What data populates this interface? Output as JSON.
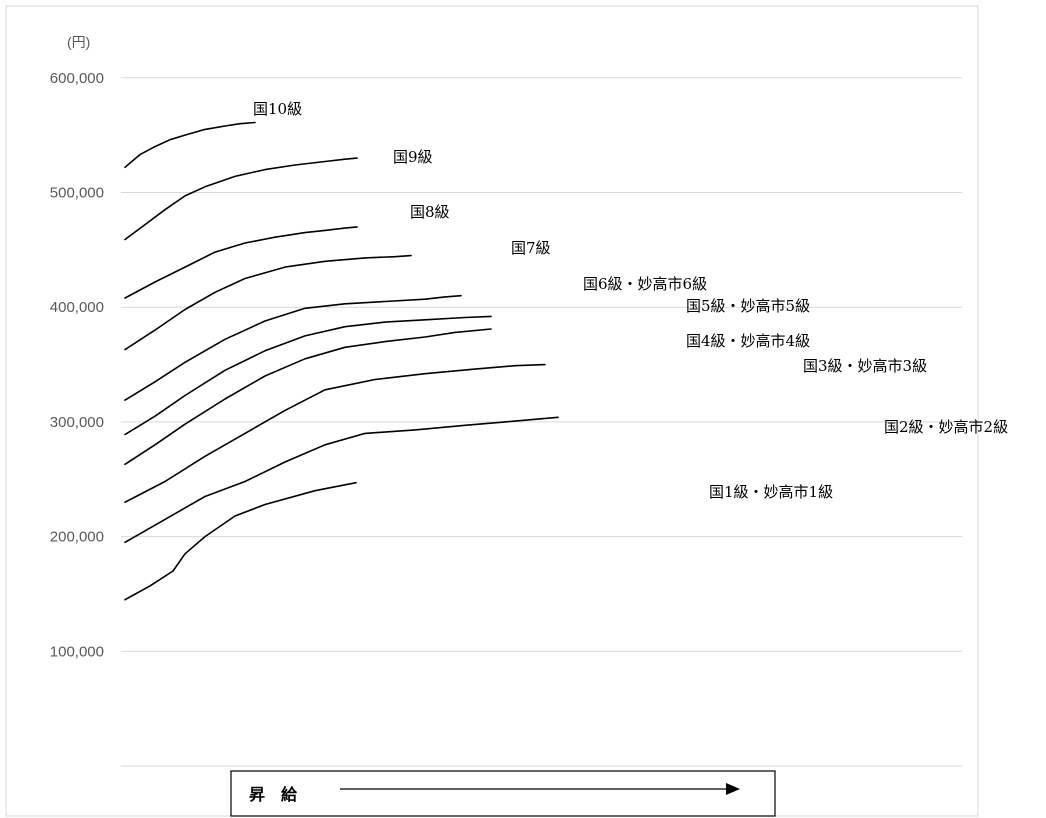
{
  "chart_data": {
    "type": "line",
    "title": "",
    "ylabel": "(円)",
    "xlabel": "昇　給",
    "ylim": [
      0,
      600000
    ],
    "yticks": [
      {
        "value": 100000,
        "label": "100,000"
      },
      {
        "value": 200000,
        "label": "200,000"
      },
      {
        "value": 300000,
        "label": "300,000"
      },
      {
        "value": 400000,
        "label": "400,000"
      },
      {
        "value": 500000,
        "label": "500,000"
      },
      {
        "value": 600000,
        "label": "600,000"
      }
    ],
    "grid": true,
    "series": [
      {
        "name": "国1級・妙高市1級",
        "x": [
          0,
          25,
          48,
          60,
          80,
          110,
          140,
          190,
          231
        ],
        "y": [
          145000,
          157000,
          170000,
          185000,
          200000,
          218000,
          228000,
          240000,
          247000
        ]
      },
      {
        "name": "国2級・妙高市2級",
        "x": [
          0,
          40,
          80,
          120,
          160,
          200,
          240,
          290,
          340,
          380,
          433
        ],
        "y": [
          195000,
          215000,
          235000,
          248000,
          265000,
          280000,
          290000,
          293000,
          297000,
          300000,
          304000
        ]
      },
      {
        "name": "国3級・妙高市3級",
        "x": [
          0,
          40,
          80,
          120,
          160,
          200,
          250,
          300,
          350,
          390,
          420
        ],
        "y": [
          230000,
          248000,
          270000,
          290000,
          310000,
          328000,
          337000,
          342000,
          346000,
          349000,
          350000
        ]
      },
      {
        "name": "国4級・妙高市4級",
        "x": [
          0,
          30,
          60,
          100,
          140,
          180,
          220,
          260,
          300,
          330,
          366
        ],
        "y": [
          263000,
          280000,
          298000,
          320000,
          340000,
          355000,
          365000,
          370000,
          374000,
          378000,
          381000
        ]
      },
      {
        "name": "国5級・妙高市5級",
        "x": [
          0,
          30,
          60,
          100,
          140,
          180,
          220,
          260,
          300,
          340,
          366
        ],
        "y": [
          289000,
          305000,
          323000,
          345000,
          362000,
          375000,
          383000,
          387000,
          389000,
          391000,
          392000
        ]
      },
      {
        "name": "国6級・妙高市6級",
        "x": [
          0,
          30,
          60,
          100,
          140,
          180,
          220,
          260,
          300,
          320,
          336
        ],
        "y": [
          319000,
          335000,
          352000,
          372000,
          388000,
          399000,
          403000,
          405000,
          407000,
          409000,
          410000
        ]
      },
      {
        "name": "国7級",
        "x": [
          0,
          30,
          60,
          90,
          120,
          160,
          200,
          240,
          270,
          286
        ],
        "y": [
          363000,
          380000,
          398000,
          413000,
          425000,
          435000,
          440000,
          443000,
          444000,
          445000
        ]
      },
      {
        "name": "国8級",
        "x": [
          0,
          30,
          60,
          90,
          120,
          150,
          180,
          200,
          220,
          232
        ],
        "y": [
          408000,
          422000,
          435000,
          448000,
          456000,
          461000,
          465000,
          467000,
          469000,
          470000
        ]
      },
      {
        "name": "国9級",
        "x": [
          0,
          20,
          40,
          60,
          80,
          110,
          140,
          170,
          200,
          220,
          232
        ],
        "y": [
          459000,
          472000,
          485000,
          497000,
          505000,
          514000,
          520000,
          524000,
          527000,
          529000,
          530000
        ]
      },
      {
        "name": "国10級",
        "x": [
          0,
          15,
          30,
          45,
          60,
          80,
          100,
          115,
          130
        ],
        "y": [
          522000,
          533000,
          540000,
          546000,
          550000,
          555000,
          558000,
          560000,
          561000
        ]
      }
    ]
  }
}
